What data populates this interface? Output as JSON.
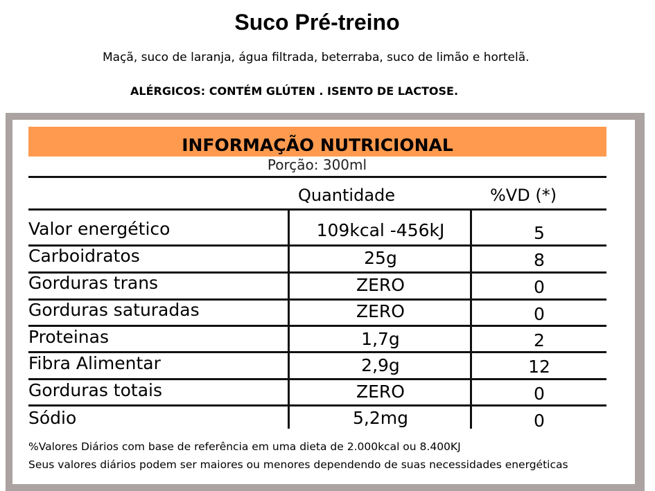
{
  "product": {
    "name": "Suco Pré-treino",
    "ingredients": "Maçã, suco de laranja, água filtrada,  beterraba, suco de limão e hortelã.",
    "allergens": "ALÉRGICOS: CONTÉM GLÚTEN . ISENTO DE LACTOSE."
  },
  "label": {
    "title": "INFORMAÇÃO NUTRICIONAL",
    "portion": "Porção: 300ml",
    "col_quantity": "Quantidade",
    "col_vd": "%VD (*)",
    "rows": [
      {
        "nutrient": "Valor energético",
        "quantity": "109kcal -456kJ",
        "vd": "5"
      },
      {
        "nutrient": "Carboidratos",
        "quantity": "25g",
        "vd": "8"
      },
      {
        "nutrient": "Gorduras trans",
        "quantity": "ZERO",
        "vd": "0"
      },
      {
        "nutrient": "Gorduras saturadas",
        "quantity": "ZERO",
        "vd": "0"
      },
      {
        "nutrient": "Proteinas",
        "quantity": "1,7g",
        "vd": "2"
      },
      {
        "nutrient": "Fibra Alimentar",
        "quantity": "2,9g",
        "vd": "12"
      },
      {
        "nutrient": "Gorduras totais",
        "quantity": "ZERO",
        "vd": "0"
      },
      {
        "nutrient": "Sódio",
        "quantity": "5,2mg",
        "vd": "0"
      }
    ],
    "footnote_1": "%Valores Diários com base de referência em uma dieta de 2.000kcal ou 8.400KJ",
    "footnote_2": "Seus valores diários podem ser maiores ou menores dependendo de suas necessidades energéticas"
  },
  "colors": {
    "header_bar": "#ff9a4f",
    "frame": "#aba3a1"
  }
}
